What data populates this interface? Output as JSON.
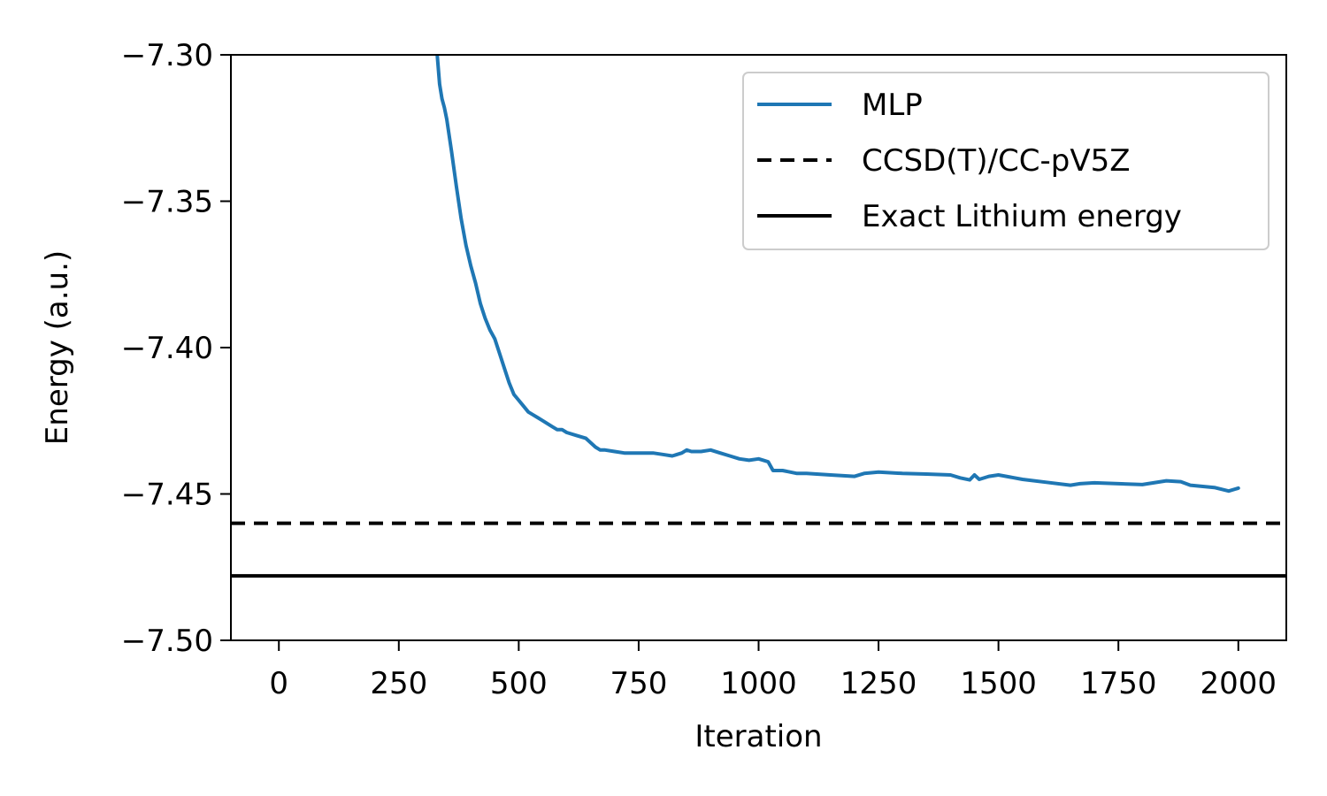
{
  "chart_data": {
    "type": "line",
    "title": "",
    "xlabel": "Iteration",
    "ylabel": "Energy (a.u.)",
    "xlim": [
      -100,
      2100
    ],
    "ylim": [
      -7.5,
      -7.3
    ],
    "xticks": [
      0,
      250,
      500,
      750,
      1000,
      1250,
      1500,
      1750,
      2000
    ],
    "xtick_labels": [
      "0",
      "250",
      "500",
      "750",
      "1000",
      "1250",
      "1500",
      "1750",
      "2000"
    ],
    "yticks": [
      -7.5,
      -7.45,
      -7.4,
      -7.35,
      -7.3
    ],
    "ytick_labels": [
      "−7.50",
      "−7.45",
      "−7.40",
      "−7.35",
      "−7.30"
    ],
    "grid": false,
    "legend_position": "top-right",
    "series": [
      {
        "name": "MLP",
        "style": "solid",
        "color": "#1f77b4",
        "x": [
          330,
          335,
          340,
          345,
          350,
          360,
          370,
          380,
          390,
          400,
          410,
          420,
          430,
          440,
          450,
          460,
          470,
          480,
          490,
          500,
          510,
          520,
          530,
          540,
          550,
          560,
          570,
          580,
          590,
          600,
          620,
          640,
          660,
          670,
          680,
          700,
          720,
          750,
          780,
          800,
          820,
          840,
          850,
          860,
          880,
          900,
          920,
          940,
          960,
          980,
          1000,
          1010,
          1020,
          1030,
          1050,
          1080,
          1100,
          1150,
          1200,
          1220,
          1250,
          1300,
          1350,
          1400,
          1420,
          1440,
          1450,
          1460,
          1480,
          1500,
          1550,
          1600,
          1650,
          1670,
          1700,
          1750,
          1800,
          1850,
          1880,
          1900,
          1950,
          1980,
          2000
        ],
        "y": [
          -7.3,
          -7.31,
          -7.315,
          -7.318,
          -7.322,
          -7.333,
          -7.345,
          -7.356,
          -7.365,
          -7.372,
          -7.378,
          -7.385,
          -7.39,
          -7.394,
          -7.397,
          -7.402,
          -7.407,
          -7.412,
          -7.416,
          -7.418,
          -7.42,
          -7.422,
          -7.423,
          -7.424,
          -7.425,
          -7.426,
          -7.427,
          -7.428,
          -7.428,
          -7.429,
          -7.43,
          -7.431,
          -7.434,
          -7.435,
          -7.435,
          -7.4355,
          -7.436,
          -7.436,
          -7.436,
          -7.4365,
          -7.437,
          -7.436,
          -7.435,
          -7.4355,
          -7.4355,
          -7.435,
          -7.436,
          -7.437,
          -7.438,
          -7.4385,
          -7.438,
          -7.4385,
          -7.439,
          -7.442,
          -7.442,
          -7.443,
          -7.443,
          -7.4435,
          -7.444,
          -7.443,
          -7.4425,
          -7.443,
          -7.4432,
          -7.4435,
          -7.4445,
          -7.4452,
          -7.4435,
          -7.445,
          -7.444,
          -7.4435,
          -7.445,
          -7.446,
          -7.447,
          -7.4465,
          -7.4462,
          -7.4465,
          -7.4468,
          -7.4455,
          -7.4458,
          -7.447,
          -7.4478,
          -7.449,
          -7.448
        ]
      },
      {
        "name": "CCSD(T)/CC-pV5Z",
        "style": "dashed",
        "color": "#000000",
        "y_constant": -7.46
      },
      {
        "name": "Exact Lithium energy",
        "style": "solid",
        "color": "#000000",
        "y_constant": -7.478
      }
    ]
  }
}
